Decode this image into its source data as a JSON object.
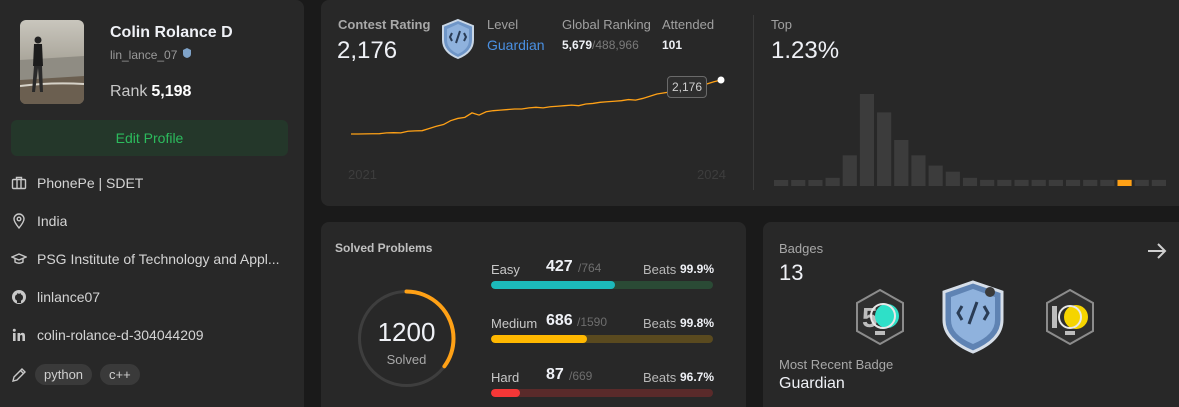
{
  "profile": {
    "name": "Colin Rolance D",
    "username": "lin_lance_07",
    "rank_label": "Rank",
    "rank_value": "5,198",
    "edit_button": "Edit Profile",
    "company": "PhonePe | SDET",
    "location": "India",
    "school": "PSG Institute of Technology and Appl...",
    "github": "linlance07",
    "linkedin": "colin-rolance-d-304044209",
    "skills": [
      "python",
      "c++"
    ]
  },
  "contest": {
    "rating_label": "Contest Rating",
    "rating_value": "2,176",
    "level_label": "Level",
    "level_value": "Guardian",
    "global_label": "Global Ranking",
    "global_value": "5,679",
    "global_total": "/488,966",
    "attended_label": "Attended",
    "attended_value": "101",
    "top_label": "Top",
    "top_value": "1.23%",
    "tooltip": "2,176",
    "year_start": "2021",
    "year_end": "2024",
    "line_color": "#ffa116",
    "histogram_color": "#3c3c3c",
    "histogram_highlight": "#ffa116",
    "rating_history": [
      1690,
      1690,
      1691,
      1692,
      1693,
      1700,
      1702,
      1700,
      1715,
      1718,
      1720,
      1740,
      1760,
      1775,
      1810,
      1830,
      1840,
      1880,
      1860,
      1890,
      1900,
      1905,
      1910,
      1915,
      1915,
      1925,
      1930,
      1925,
      1935,
      1940,
      1945,
      1950,
      1945,
      1960,
      1965,
      1975,
      1980,
      1985,
      1990,
      2000,
      1995,
      2010,
      2030,
      2050,
      2060,
      2070,
      2090,
      2110,
      2120,
      2100,
      2140,
      2160,
      2176
    ],
    "histogram": [
      5,
      5,
      5,
      8,
      30,
      90,
      72,
      45,
      30,
      20,
      14,
      8,
      6,
      6,
      6,
      6,
      6,
      6,
      6,
      6,
      6,
      6,
      6
    ],
    "histogram_highlight_index": 20
  },
  "solved": {
    "title": "Solved Problems",
    "total": "1200",
    "total_sub": "Solved",
    "ring_fraction": 0.35,
    "ring_color": "#ffa116",
    "difficulties": [
      {
        "name": "Easy",
        "solved": "427",
        "total": "/764",
        "beats_label": "Beats",
        "beats": "99.9%",
        "fraction": 0.559,
        "color": "#1cbaba",
        "track": "#2a4a35"
      },
      {
        "name": "Medium",
        "solved": "686",
        "total": "/1590",
        "beats_label": "Beats",
        "beats": "99.8%",
        "fraction": 0.431,
        "color": "#ffb800",
        "track": "#5a4a1f"
      },
      {
        "name": "Hard",
        "solved": "87",
        "total": "/669",
        "beats_label": "Beats",
        "beats": "96.7%",
        "fraction": 0.13,
        "color": "#f63737",
        "track": "#5a2a2a"
      }
    ]
  },
  "badges": {
    "title": "Badges",
    "count": "13",
    "recent_label": "Most Recent Badge",
    "recent_value": "Guardian"
  }
}
